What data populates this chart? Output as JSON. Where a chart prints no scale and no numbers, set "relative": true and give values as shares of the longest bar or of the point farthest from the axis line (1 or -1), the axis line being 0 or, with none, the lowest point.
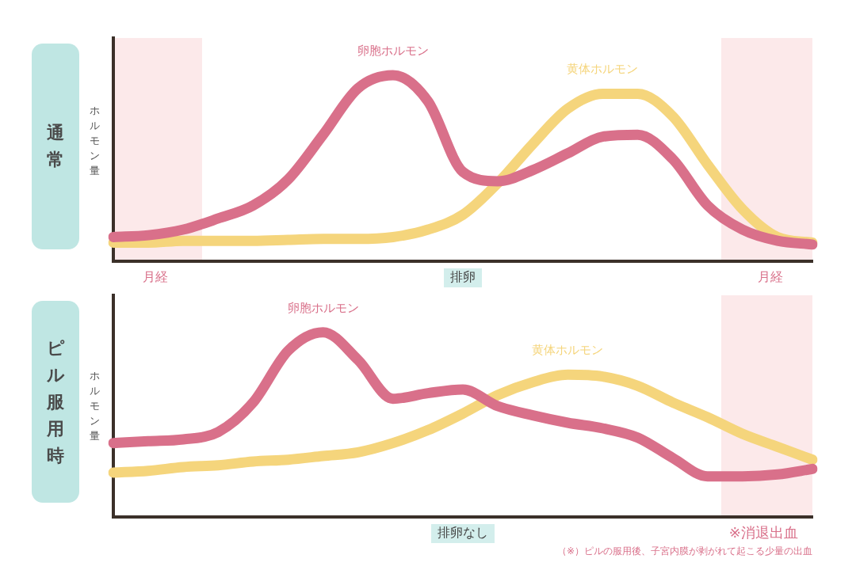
{
  "chart_data": [
    {
      "type": "line",
      "title": "通常",
      "ylabel": "ホルモン量",
      "relative": true,
      "categories": [
        null,
        null,
        null,
        null,
        null,
        null,
        null,
        null,
        null,
        null,
        null,
        null,
        null,
        null,
        null,
        null,
        null,
        null,
        null,
        null,
        null
      ],
      "annotations": [
        "月経",
        "排卵",
        "月経"
      ],
      "series": [
        {
          "name": "卵胞ホルモン",
          "color": "#d9708a",
          "values": [
            0.13,
            0.14,
            0.17,
            0.23,
            0.3,
            0.44,
            0.68,
            0.93,
            1,
            0.86,
            0.48,
            0.43,
            0.49,
            0.58,
            0.67,
            0.68,
            0.55,
            0.3,
            0.17,
            0.11,
            0.09
          ]
        },
        {
          "name": "黄体ホルモン",
          "color": "#f5d57c",
          "values": [
            0.1,
            0.1,
            0.11,
            0.11,
            0.11,
            0.115,
            0.12,
            0.12,
            0.13,
            0.17,
            0.25,
            0.42,
            0.63,
            0.82,
            0.9,
            0.9,
            0.78,
            0.52,
            0.28,
            0.13,
            0.1
          ]
        }
      ]
    },
    {
      "type": "line",
      "title": "ピル服用時",
      "ylabel": "ホルモン量",
      "relative": true,
      "categories": [
        null,
        null,
        null,
        null,
        null,
        null,
        null,
        null,
        null,
        null,
        null,
        null,
        null,
        null,
        null,
        null,
        null,
        null,
        null,
        null,
        null
      ],
      "annotations": [
        "排卵なし",
        "※消退出血",
        "（※）ピルの服用後、子宮内膜が剥がれて起こる少量の出血"
      ],
      "series": [
        {
          "name": "卵胞ホルモン",
          "color": "#d9708a",
          "values": [
            0.4,
            0.41,
            0.42,
            0.46,
            0.62,
            0.9,
            1,
            0.85,
            0.64,
            0.67,
            0.69,
            0.6,
            0.55,
            0.51,
            0.48,
            0.43,
            0.32,
            0.22,
            0.22,
            0.23,
            0.26
          ]
        },
        {
          "name": "黄体ホルモン",
          "color": "#f5d57c",
          "values": [
            0.24,
            0.25,
            0.27,
            0.28,
            0.3,
            0.31,
            0.33,
            0.35,
            0.4,
            0.47,
            0.56,
            0.66,
            0.73,
            0.77,
            0.76,
            0.71,
            0.62,
            0.54,
            0.45,
            0.38,
            0.31
          ]
        }
      ]
    }
  ]
}
